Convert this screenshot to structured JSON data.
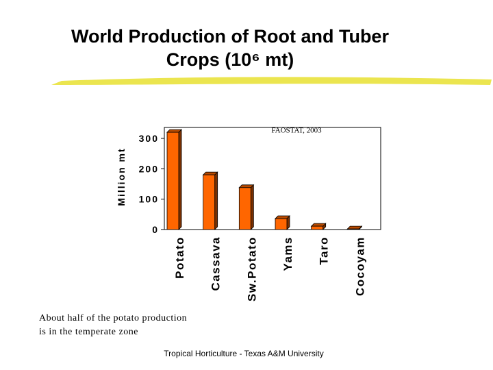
{
  "chart_data": {
    "type": "bar",
    "title": "World Production of Root and Tuber Crops (10⁶ mt)",
    "y_label": "Million mt",
    "annotation": "FAOSTAT, 2003",
    "categories": [
      "Potato",
      "Cassava",
      "Sw.Potato",
      "Yams",
      "Taro",
      "Cocoyam"
    ],
    "values": [
      320,
      180,
      138,
      36,
      11,
      2
    ],
    "color": "#ff6600",
    "ylim": [
      0,
      336
    ],
    "yticks": [
      0,
      100,
      200,
      300
    ],
    "grid": false
  },
  "note": [
    "About half of the potato production",
    "is in the temperate zone"
  ],
  "footer": "Tropical Horticulture - Texas A&M University"
}
